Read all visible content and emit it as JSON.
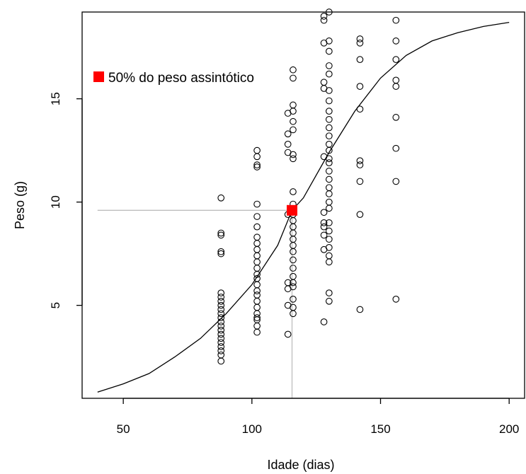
{
  "chart_data": {
    "type": "scatter",
    "xlabel": "Idade (dias)",
    "ylabel": "Peso (g)",
    "xlim": [
      34,
      206
    ],
    "ylim": [
      0.5,
      19.2
    ],
    "xticks": [
      50,
      100,
      150,
      200
    ],
    "yticks": [
      5,
      10,
      15
    ],
    "grid": false,
    "legend": {
      "position": "top-left",
      "entries": [
        {
          "label": "50% do peso assintótico",
          "color": "#ff0000",
          "marker": "square"
        }
      ]
    },
    "series": [
      {
        "kind": "points",
        "marker": "open-circle",
        "color": "#000000",
        "points": [
          [
            88,
            10.2
          ],
          [
            88,
            8.5
          ],
          [
            88,
            8.4
          ],
          [
            88,
            7.6
          ],
          [
            88,
            7.5
          ],
          [
            88,
            5.6
          ],
          [
            88,
            5.4
          ],
          [
            88,
            5.2
          ],
          [
            88,
            5.0
          ],
          [
            88,
            4.8
          ],
          [
            88,
            4.6
          ],
          [
            88,
            4.4
          ],
          [
            88,
            4.2
          ],
          [
            88,
            4.0
          ],
          [
            88,
            3.8
          ],
          [
            88,
            3.6
          ],
          [
            88,
            3.4
          ],
          [
            88,
            3.2
          ],
          [
            88,
            3.0
          ],
          [
            88,
            2.8
          ],
          [
            88,
            2.6
          ],
          [
            88,
            2.3
          ],
          [
            102,
            12.5
          ],
          [
            102,
            12.2
          ],
          [
            102,
            11.8
          ],
          [
            102,
            11.7
          ],
          [
            102,
            9.9
          ],
          [
            102,
            9.3
          ],
          [
            102,
            8.8
          ],
          [
            102,
            8.3
          ],
          [
            102,
            8.0
          ],
          [
            102,
            7.7
          ],
          [
            102,
            7.4
          ],
          [
            102,
            7.1
          ],
          [
            102,
            6.8
          ],
          [
            102,
            6.5
          ],
          [
            102,
            6.3
          ],
          [
            102,
            6.0
          ],
          [
            102,
            5.7
          ],
          [
            102,
            5.5
          ],
          [
            102,
            5.2
          ],
          [
            102,
            4.9
          ],
          [
            102,
            4.6
          ],
          [
            102,
            4.4
          ],
          [
            102,
            4.3
          ],
          [
            102,
            4.0
          ],
          [
            102,
            3.7
          ],
          [
            116,
            16.4
          ],
          [
            116,
            16.0
          ],
          [
            116,
            14.7
          ],
          [
            116,
            14.4
          ],
          [
            116,
            13.9
          ],
          [
            116,
            13.5
          ],
          [
            116,
            12.3
          ],
          [
            116,
            12.1
          ],
          [
            116,
            10.5
          ],
          [
            116,
            9.9
          ],
          [
            116,
            9.4
          ],
          [
            116,
            9.1
          ],
          [
            116,
            8.8
          ],
          [
            116,
            8.5
          ],
          [
            116,
            8.2
          ],
          [
            116,
            7.9
          ],
          [
            116,
            7.6
          ],
          [
            116,
            7.2
          ],
          [
            116,
            6.8
          ],
          [
            116,
            6.4
          ],
          [
            116,
            6.1
          ],
          [
            116,
            5.9
          ],
          [
            116,
            5.3
          ],
          [
            116,
            4.9
          ],
          [
            116,
            4.6
          ],
          [
            114,
            14.3
          ],
          [
            114,
            13.3
          ],
          [
            114,
            12.8
          ],
          [
            114,
            12.4
          ],
          [
            114,
            9.4
          ],
          [
            114,
            6.1
          ],
          [
            114,
            5.8
          ],
          [
            114,
            5.0
          ],
          [
            114,
            3.6
          ],
          [
            128,
            19.0
          ],
          [
            128,
            18.8
          ],
          [
            128,
            17.7
          ],
          [
            128,
            15.8
          ],
          [
            128,
            15.5
          ],
          [
            128,
            12.2
          ],
          [
            128,
            9.5
          ],
          [
            128,
            9.0
          ],
          [
            128,
            8.8
          ],
          [
            128,
            8.4
          ],
          [
            128,
            7.7
          ],
          [
            128,
            4.2
          ],
          [
            130,
            19.2
          ],
          [
            130,
            17.8
          ],
          [
            130,
            17.3
          ],
          [
            130,
            16.6
          ],
          [
            130,
            16.2
          ],
          [
            130,
            15.4
          ],
          [
            130,
            14.9
          ],
          [
            130,
            14.4
          ],
          [
            130,
            14.0
          ],
          [
            130,
            13.6
          ],
          [
            130,
            13.2
          ],
          [
            130,
            12.8
          ],
          [
            130,
            12.5
          ],
          [
            130,
            12.1
          ],
          [
            130,
            11.9
          ],
          [
            130,
            11.5
          ],
          [
            130,
            11.1
          ],
          [
            130,
            10.7
          ],
          [
            130,
            10.4
          ],
          [
            130,
            10.0
          ],
          [
            130,
            9.7
          ],
          [
            130,
            9.0
          ],
          [
            130,
            8.6
          ],
          [
            130,
            8.2
          ],
          [
            130,
            7.8
          ],
          [
            130,
            7.4
          ],
          [
            130,
            7.1
          ],
          [
            130,
            5.6
          ],
          [
            130,
            5.2
          ],
          [
            142,
            17.9
          ],
          [
            142,
            17.7
          ],
          [
            142,
            16.9
          ],
          [
            142,
            15.6
          ],
          [
            142,
            14.5
          ],
          [
            142,
            12.0
          ],
          [
            142,
            11.8
          ],
          [
            142,
            11.0
          ],
          [
            142,
            9.4
          ],
          [
            142,
            4.8
          ],
          [
            156,
            18.8
          ],
          [
            156,
            17.8
          ],
          [
            156,
            16.9
          ],
          [
            156,
            15.9
          ],
          [
            156,
            15.6
          ],
          [
            156,
            14.1
          ],
          [
            156,
            12.6
          ],
          [
            156,
            11.0
          ],
          [
            156,
            5.3
          ]
        ]
      },
      {
        "kind": "line",
        "name": "fitted curve",
        "color": "#000000",
        "x": [
          40,
          50,
          60,
          70,
          80,
          90,
          100,
          110,
          115.6,
          120,
          130,
          140,
          150,
          160,
          170,
          180,
          190,
          200
        ],
        "y": [
          0.8,
          1.2,
          1.7,
          2.5,
          3.4,
          4.6,
          6.0,
          7.9,
          9.6,
          10.2,
          12.4,
          14.4,
          16.0,
          17.1,
          17.8,
          18.2,
          18.5,
          18.7
        ]
      }
    ],
    "annotations": [
      {
        "kind": "highlight-point",
        "x": 115.6,
        "y": 9.6,
        "color": "#ff0000",
        "marker": "square"
      },
      {
        "kind": "horizontal-guide",
        "y": 9.6,
        "x_from": 40,
        "x_to": 115.6,
        "color": "#bebebe"
      },
      {
        "kind": "vertical-guide",
        "x": 115.6,
        "y_from": 0.5,
        "y_to": 9.6,
        "color": "#bebebe"
      }
    ]
  }
}
